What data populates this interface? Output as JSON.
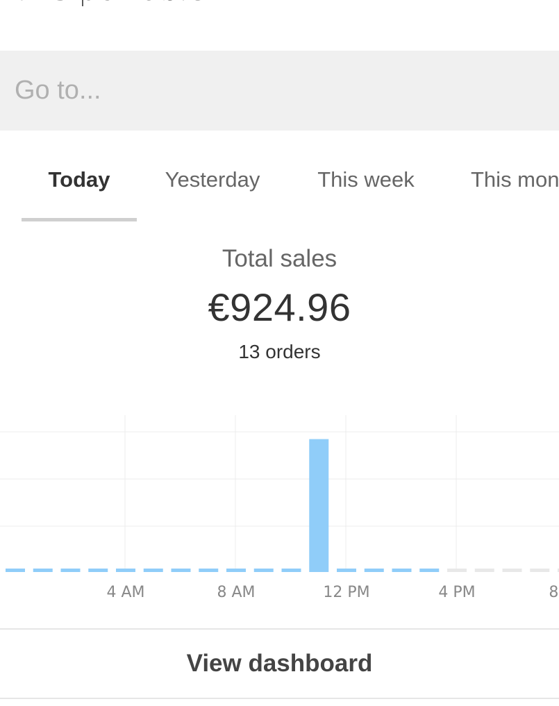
{
  "header": {
    "partial_title": "T?C portable"
  },
  "search": {
    "placeholder": "Go to..."
  },
  "tabs": [
    {
      "label": "Today",
      "active": true
    },
    {
      "label": "Yesterday",
      "active": false
    },
    {
      "label": "This week",
      "active": false
    },
    {
      "label": "This mon",
      "active": false
    }
  ],
  "summary": {
    "title": "Total sales",
    "amount": "€924.96",
    "orders": "13 orders"
  },
  "colors": {
    "bar": "#90cdf9",
    "bar_future": "#e8e8e8",
    "grid": "#ececec",
    "tick_text": "#888888"
  },
  "chart_data": {
    "type": "bar",
    "title": "",
    "xlabel": "",
    "ylabel": "",
    "x_tick_labels": [
      "4 AM",
      "8 AM",
      "12 PM",
      "4 PM",
      "8 PM"
    ],
    "hours": [
      0,
      1,
      2,
      3,
      4,
      5,
      6,
      7,
      8,
      9,
      10,
      11,
      12,
      13,
      14,
      15,
      16,
      17,
      18,
      19,
      20
    ],
    "values": [
      0,
      0,
      0,
      0,
      0,
      0,
      0,
      0,
      0,
      0,
      0,
      924.96,
      0,
      0,
      0,
      0,
      0,
      0,
      0,
      0,
      0
    ],
    "current_hour": 15,
    "ylim": [
      0,
      1000
    ],
    "grid": true
  },
  "footer": {
    "view_dashboard_label": "View dashboard"
  }
}
